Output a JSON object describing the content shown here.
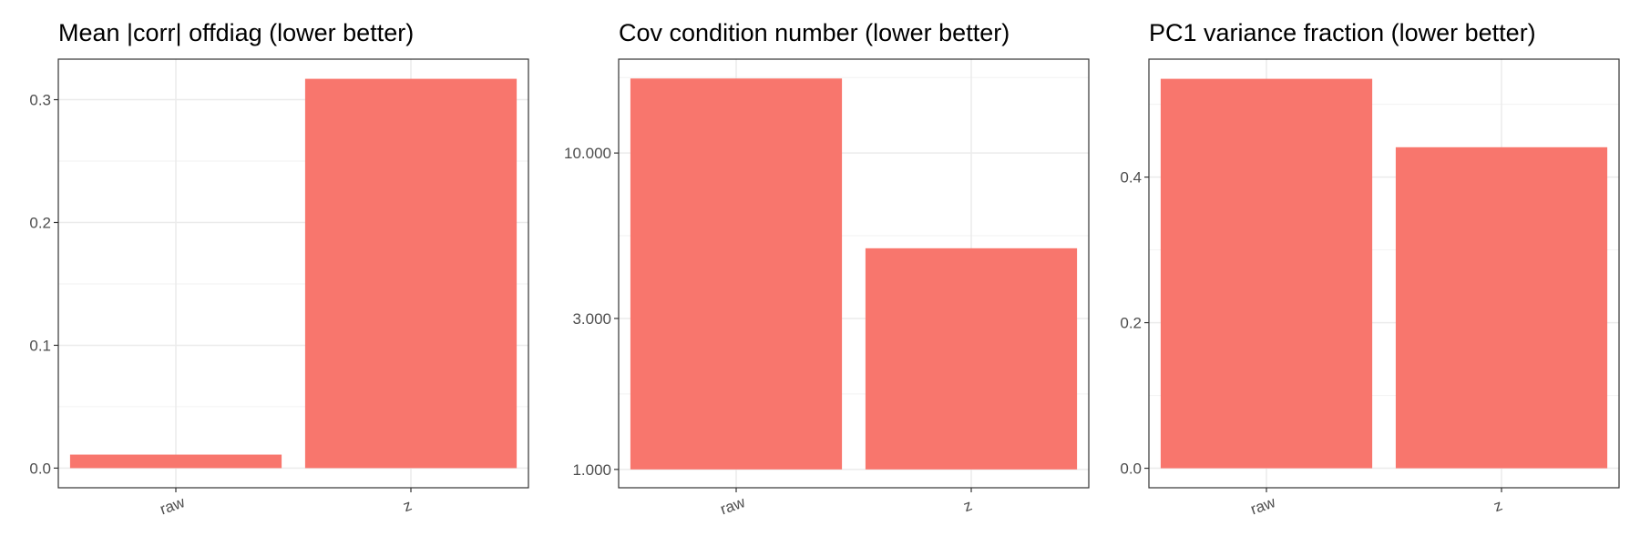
{
  "chart_data": [
    {
      "type": "bar",
      "title": "Mean |corr| offdiag (lower better)",
      "xlabel": "",
      "ylabel": "",
      "categories": [
        "raw",
        "z"
      ],
      "values": [
        0.011,
        0.317
      ],
      "ylim": [
        -0.016,
        0.333
      ],
      "scale": "linear",
      "yticks": [
        0.0,
        0.1,
        0.2,
        0.3
      ],
      "ytick_labels": [
        "0.0",
        "0.1",
        "0.2",
        "0.3"
      ],
      "bar_color": "#F8766D",
      "grid": true,
      "legend": "none"
    },
    {
      "type": "bar",
      "title": "Cov condition number (lower better)",
      "xlabel": "",
      "ylabel": "",
      "categories": [
        "raw",
        "z"
      ],
      "values": [
        17200,
        5000
      ],
      "ylim": [
        875,
        19800
      ],
      "scale": "log",
      "yticks": [
        1000,
        3000,
        10000
      ],
      "ytick_labels": [
        "1.000",
        "3.000",
        "10.000"
      ],
      "bar_color": "#F8766D",
      "grid": true,
      "legend": "none"
    },
    {
      "type": "bar",
      "title": "PC1 variance fraction (lower better)",
      "xlabel": "",
      "ylabel": "",
      "categories": [
        "raw",
        "z"
      ],
      "values": [
        0.535,
        0.441
      ],
      "ylim": [
        -0.0268,
        0.562
      ],
      "scale": "linear",
      "yticks": [
        0.0,
        0.2,
        0.4
      ],
      "ytick_labels": [
        "0.0",
        "0.2",
        "0.4"
      ],
      "bar_color": "#F8766D",
      "grid": true,
      "legend": "none"
    }
  ]
}
